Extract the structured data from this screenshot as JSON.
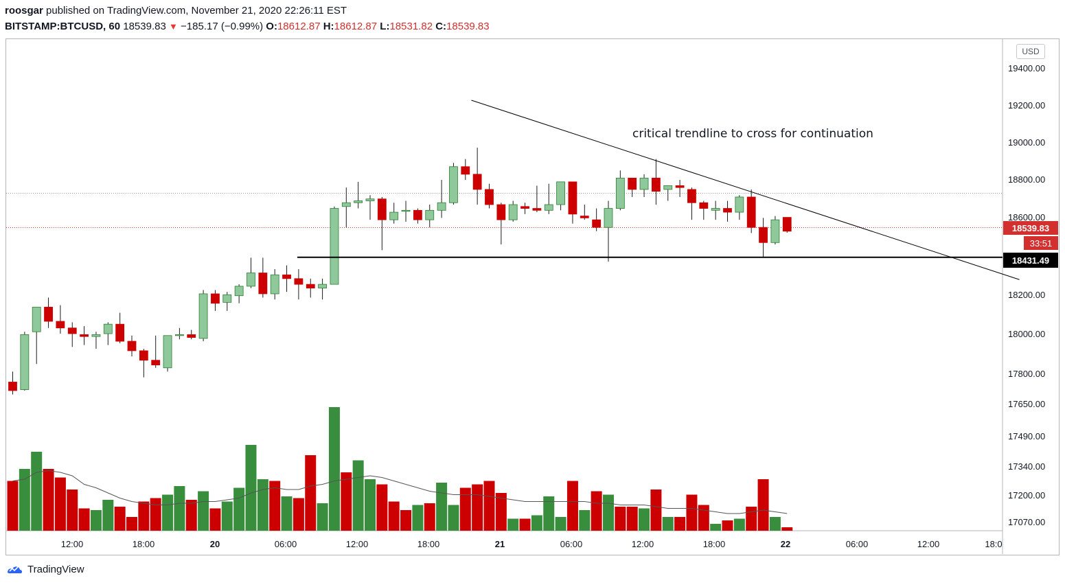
{
  "header": {
    "author": "roosgar",
    "published_text": "published on TradingView.com, November 21, 2020 22:26:11 EST",
    "symbol": "BITSTAMP:BTCUSD, 60",
    "last": "18539.83",
    "change": "−185.17 (−0.99%)",
    "o_label": "O:",
    "o_val": "18612.87",
    "h_label": "H:",
    "h_val": "18612.87",
    "l_label": "L:",
    "l_val": "18531.82",
    "c_label": "C:",
    "c_val": "18539.83"
  },
  "footer": {
    "brand": "TradingView"
  },
  "colors": {
    "up": "#8fc89a",
    "up_border": "#2e7d32",
    "down": "#cc0000",
    "vol_up": "#388e3c",
    "vol_down": "#cc0000",
    "price_label": "#d32f2f"
  },
  "chart_data": {
    "type": "candlestick",
    "currency": "USD",
    "annotation": "critical trendline to cross for continuation",
    "x_ticks": [
      "12:00",
      "18:00",
      "20",
      "06:00",
      "12:00",
      "18:00",
      "21",
      "06:00",
      "12:00",
      "18:00",
      "22",
      "06:00",
      "12:00",
      "18:0"
    ],
    "y_ticks": [
      "19400.00",
      "19200.00",
      "19000.00",
      "18800.00",
      "18600.00",
      "18200.00",
      "18000.00",
      "17800.00",
      "17650.00",
      "17490.00",
      "17340.00",
      "17200.00",
      "17070.00"
    ],
    "price_labels": {
      "last": "18539.83",
      "countdown": "33:51",
      "support": "18431.49"
    },
    "support_level": 18431.49,
    "trendline": {
      "from_candle": 38.5,
      "from_price": 19230,
      "to_candle": 84.5,
      "to_price": 18285
    },
    "candles": [
      [
        17745,
        17800,
        17680,
        17700
      ],
      [
        17705,
        18010,
        17700,
        17995
      ],
      [
        18010,
        18140,
        17840,
        18140
      ],
      [
        18140,
        18190,
        18030,
        18065
      ],
      [
        18065,
        18150,
        18000,
        18030
      ],
      [
        18030,
        18060,
        17930,
        18000
      ],
      [
        17995,
        18040,
        17940,
        17985
      ],
      [
        17985,
        18010,
        17920,
        17995
      ],
      [
        18000,
        18060,
        17940,
        18050
      ],
      [
        18050,
        18110,
        17950,
        17960
      ],
      [
        17960,
        17990,
        17880,
        17910
      ],
      [
        17910,
        17920,
        17770,
        17860
      ],
      [
        17860,
        17990,
        17820,
        17835
      ],
      [
        17820,
        17990,
        17800,
        17990
      ],
      [
        17990,
        18030,
        17970,
        17995
      ],
      [
        17995,
        18020,
        17970,
        17980
      ],
      [
        17975,
        18230,
        17960,
        18210
      ],
      [
        18210,
        18230,
        18120,
        18160
      ],
      [
        18165,
        18220,
        18120,
        18205
      ],
      [
        18200,
        18260,
        18160,
        18250
      ],
      [
        18250,
        18400,
        18240,
        18320
      ],
      [
        18320,
        18400,
        18190,
        18210
      ],
      [
        18210,
        18340,
        18180,
        18310
      ],
      [
        18310,
        18360,
        18220,
        18290
      ],
      [
        18290,
        18340,
        18180,
        18260
      ],
      [
        18260,
        18290,
        18190,
        18240
      ],
      [
        18240,
        18290,
        18180,
        18260
      ],
      [
        18260,
        18670,
        18260,
        18660
      ],
      [
        18670,
        18770,
        18560,
        18690
      ],
      [
        18690,
        18800,
        18660,
        18700
      ],
      [
        18700,
        18730,
        18600,
        18710
      ],
      [
        18710,
        18720,
        18440,
        18600
      ],
      [
        18600,
        18690,
        18580,
        18640
      ],
      [
        18650,
        18700,
        18590,
        18650
      ],
      [
        18650,
        18660,
        18580,
        18600
      ],
      [
        18600,
        18680,
        18560,
        18650
      ],
      [
        18650,
        18810,
        18610,
        18690
      ],
      [
        18690,
        18900,
        18680,
        18880
      ],
      [
        18880,
        18920,
        18810,
        18840
      ],
      [
        18840,
        18980,
        18680,
        18760
      ],
      [
        18760,
        18790,
        18660,
        18680
      ],
      [
        18680,
        18690,
        18470,
        18600
      ],
      [
        18600,
        18700,
        18590,
        18680
      ],
      [
        18670,
        18690,
        18630,
        18660
      ],
      [
        18660,
        18780,
        18640,
        18650
      ],
      [
        18650,
        18790,
        18630,
        18680
      ],
      [
        18680,
        18800,
        18650,
        18800
      ],
      [
        18800,
        18800,
        18580,
        18630
      ],
      [
        18620,
        18680,
        18600,
        18610
      ],
      [
        18600,
        18660,
        18540,
        18560
      ],
      [
        18560,
        18700,
        18380,
        18660
      ],
      [
        18660,
        18860,
        18650,
        18820
      ],
      [
        18820,
        18820,
        18720,
        18760
      ],
      [
        18760,
        18840,
        18720,
        18820
      ],
      [
        18820,
        18920,
        18680,
        18750
      ],
      [
        18760,
        18780,
        18700,
        18780
      ],
      [
        18780,
        18810,
        18720,
        18770
      ],
      [
        18760,
        18770,
        18600,
        18690
      ],
      [
        18690,
        18700,
        18600,
        18660
      ],
      [
        18650,
        18700,
        18600,
        18660
      ],
      [
        18660,
        18700,
        18590,
        18640
      ],
      [
        18640,
        18730,
        18600,
        18720
      ],
      [
        18720,
        18760,
        18530,
        18560
      ],
      [
        18560,
        18610,
        18400,
        18480
      ],
      [
        18480,
        18620,
        18470,
        18600
      ],
      [
        18612.87,
        18612.87,
        18531.82,
        18539.83
      ]
    ],
    "volume": [
      [
        29,
        "d"
      ],
      [
        36,
        "u"
      ],
      [
        46,
        "u"
      ],
      [
        36,
        "d"
      ],
      [
        31,
        "d"
      ],
      [
        24,
        "d"
      ],
      [
        13,
        "d"
      ],
      [
        12,
        "u"
      ],
      [
        18,
        "u"
      ],
      [
        14,
        "d"
      ],
      [
        8,
        "d"
      ],
      [
        17,
        "d"
      ],
      [
        19,
        "d"
      ],
      [
        21,
        "u"
      ],
      [
        26,
        "u"
      ],
      [
        18,
        "d"
      ],
      [
        23,
        "u"
      ],
      [
        13,
        "d"
      ],
      [
        17,
        "u"
      ],
      [
        25,
        "u"
      ],
      [
        50,
        "u"
      ],
      [
        30,
        "u"
      ],
      [
        29,
        "d"
      ],
      [
        20,
        "u"
      ],
      [
        19,
        "d"
      ],
      [
        44,
        "d"
      ],
      [
        16,
        "u"
      ],
      [
        72,
        "u"
      ],
      [
        34,
        "d"
      ],
      [
        41,
        "u"
      ],
      [
        30,
        "u"
      ],
      [
        27,
        "d"
      ],
      [
        17,
        "d"
      ],
      [
        12,
        "d"
      ],
      [
        15,
        "u"
      ],
      [
        16,
        "d"
      ],
      [
        28,
        "u"
      ],
      [
        15,
        "u"
      ],
      [
        25,
        "d"
      ],
      [
        27,
        "d"
      ],
      [
        29,
        "d"
      ],
      [
        22,
        "d"
      ],
      [
        7,
        "u"
      ],
      [
        7,
        "d"
      ],
      [
        9,
        "u"
      ],
      [
        20,
        "u"
      ],
      [
        8,
        "u"
      ],
      [
        29,
        "d"
      ],
      [
        12,
        "u"
      ],
      [
        23,
        "d"
      ],
      [
        21,
        "u"
      ],
      [
        14,
        "d"
      ],
      [
        14,
        "d"
      ],
      [
        13,
        "u"
      ],
      [
        24,
        "d"
      ],
      [
        8,
        "u"
      ],
      [
        8,
        "d"
      ],
      [
        21,
        "d"
      ],
      [
        15,
        "d"
      ],
      [
        4,
        "u"
      ],
      [
        6,
        "d"
      ],
      [
        7,
        "u"
      ],
      [
        14,
        "d"
      ],
      [
        30,
        "d"
      ],
      [
        8,
        "u"
      ],
      [
        2,
        "d"
      ]
    ],
    "volume_ma": [
      29,
      30,
      34,
      35,
      34,
      32,
      27,
      25,
      22,
      19,
      17,
      16,
      15,
      15,
      16,
      16,
      17,
      17,
      18,
      19,
      22,
      24,
      25,
      24,
      24,
      26,
      27,
      29,
      30,
      31,
      32,
      31,
      29,
      27,
      25,
      23,
      22,
      21,
      21,
      21,
      20,
      19,
      18,
      17,
      17,
      17,
      17,
      17,
      17,
      16,
      16,
      15,
      15,
      15,
      14,
      13,
      13,
      13,
      12,
      11,
      10,
      10,
      11,
      12,
      11,
      10
    ]
  }
}
